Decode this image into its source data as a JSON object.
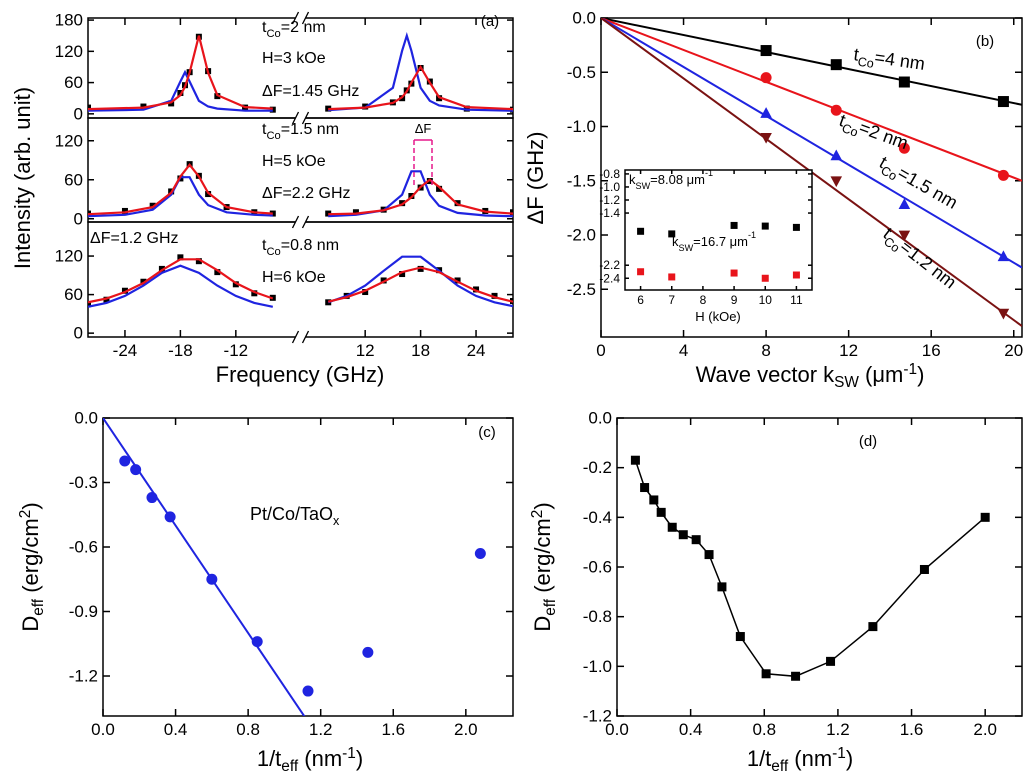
{
  "chart_data": [
    {
      "type": "spectra",
      "panel_label": "(a)",
      "ylabel": "Intensity (arb. unit)",
      "xlabel": "Frequency (GHz)",
      "xlim": [
        -28,
        28
      ],
      "xbreak": [
        -8,
        8
      ],
      "xticks": [
        -24,
        -18,
        -12,
        12,
        18,
        24
      ],
      "subplots": [
        {
          "ylim": [
            -8,
            184
          ],
          "yticks": [
            0,
            60,
            120,
            180
          ],
          "x": [
            -28,
            -22,
            -19,
            -18,
            -17.5,
            -17,
            -16,
            -15,
            -14,
            -11,
            -8,
            0,
            8,
            12,
            15,
            16,
            16.5,
            17,
            18,
            19,
            20,
            23,
            28
          ],
          "series": [
            {
              "color": "#000000",
              "marker": "square",
              "values": [
                12,
                14,
                20,
                40,
                55,
                80,
                148,
                82,
                34,
                12,
                8,
                null,
                10,
                14,
                22,
                30,
                45,
                58,
                88,
                62,
                30,
                10,
                8
              ]
            },
            {
              "color": "#e8141b",
              "values": [
                9,
                12,
                22,
                36,
                52,
                79,
                150,
                79,
                36,
                13,
                10,
                null,
                9,
                12,
                21,
                32,
                43,
                60,
                90,
                60,
                32,
                13,
                9
              ]
            },
            {
              "color": "#1f24e0",
              "values": [
                6,
                8,
                25,
                62,
                80,
                62,
                25,
                14,
                10,
                6,
                6,
                null,
                7,
                12,
                50,
                121,
                150,
                121,
                50,
                25,
                16,
                8,
                6
              ]
            }
          ],
          "annotations": [
            {
              "text": [
                "t",
                {
                  "t": "Co",
                  "s": "sub"
                },
                "=2 nm"
              ]
            },
            {
              "text": "H=3 kOe"
            },
            {
              "text": "ΔF=1.45 GHz"
            }
          ]
        },
        {
          "ylim": [
            -5,
            155
          ],
          "yticks": [
            0,
            60,
            120
          ],
          "x": [
            -28,
            -24,
            -21,
            -19,
            -18,
            -17,
            -16,
            -15,
            -13,
            -10,
            -8,
            0,
            8,
            11,
            14,
            16,
            17,
            18,
            19,
            20,
            22,
            25,
            28
          ],
          "series": [
            {
              "color": "#000000",
              "marker": "square",
              "values": [
                8,
                12,
                20,
                42,
                62,
                84,
                66,
                38,
                18,
                10,
                8,
                null,
                8,
                10,
                14,
                24,
                35,
                48,
                58,
                46,
                24,
                12,
                10
              ]
            },
            {
              "color": "#e8141b",
              "values": [
                7,
                10,
                18,
                40,
                65,
                83,
                65,
                40,
                18,
                10,
                8,
                null,
                7,
                8,
                13,
                22,
                33,
                49,
                60,
                49,
                22,
                11,
                8
              ]
            },
            {
              "color": "#1f24e0",
              "values": [
                4,
                6,
                14,
                37,
                64,
                64,
                37,
                21,
                10,
                6,
                5,
                null,
                4,
                6,
                13,
                37,
                73,
                73,
                37,
                20,
                9,
                5,
                4
              ]
            }
          ],
          "annotations": [
            {
              "text": [
                "t",
                {
                  "t": "Co",
                  "s": "sub"
                },
                "=1.5 nm"
              ]
            },
            {
              "text": "H=5 kOe"
            },
            {
              "text": "ΔF=2.2 GHz"
            },
            {
              "text": "ΔF",
              "color": "#e6198c"
            }
          ]
        },
        {
          "ylim": [
            -6,
            173
          ],
          "yticks": [
            0,
            60,
            120
          ],
          "x": [
            -28,
            -26,
            -24,
            -22,
            -20,
            -18,
            -16,
            -14,
            -12,
            -10,
            -8,
            0,
            8,
            10,
            12,
            14,
            16,
            18,
            20,
            22,
            24,
            26,
            28
          ],
          "series": [
            {
              "color": "#000000",
              "marker": "square",
              "values": [
                45,
                52,
                66,
                80,
                100,
                118,
                112,
                95,
                76,
                62,
                55,
                null,
                48,
                58,
                64,
                82,
                92,
                100,
                98,
                82,
                68,
                58,
                50
              ]
            },
            {
              "color": "#e8141b",
              "values": [
                48,
                54,
                64,
                78,
                98,
                115,
                115,
                98,
                78,
                64,
                54,
                null,
                49,
                56,
                66,
                80,
                95,
                102,
                95,
                80,
                66,
                56,
                49
              ]
            },
            {
              "color": "#1f24e0",
              "values": [
                41,
                47,
                58,
                74,
                94,
                105,
                94,
                74,
                58,
                47,
                41,
                null,
                48,
                58,
                74,
                97,
                119,
                119,
                97,
                74,
                58,
                48,
                42
              ]
            }
          ],
          "annotations": [
            {
              "text": "ΔF=1.2 GHz"
            },
            {
              "text": [
                "t",
                {
                  "t": "Co",
                  "s": "sub"
                },
                "=0.8 nm"
              ]
            },
            {
              "text": "H=6 kOe"
            }
          ]
        }
      ]
    },
    {
      "type": "scatter",
      "panel_label": "(b)",
      "ylabel": "ΔF (GHz)",
      "xlabel": [
        "Wave vector k",
        {
          "t": "SW",
          "s": "sub"
        },
        " (μm",
        {
          "t": "-1",
          "s": "sup"
        },
        ")"
      ],
      "xlim": [
        0,
        20.4
      ],
      "ylim": [
        -2.94,
        0
      ],
      "xticks": [
        0,
        4,
        8,
        12,
        16,
        20
      ],
      "yticks": [
        {
          "value": 0,
          "label": "0.0"
        },
        -0.5,
        {
          "value": -1,
          "label": "-1.0"
        },
        -1.5,
        {
          "value": -2,
          "label": "-2.0"
        },
        -2.5
      ],
      "x": [
        8.0,
        11.4,
        14.7,
        19.5
      ],
      "series": [
        {
          "color": "#000000",
          "marker": "square",
          "values": [
            -0.3,
            -0.43,
            -0.59,
            -0.77
          ],
          "fit_x": [
            0,
            20.4
          ],
          "fit_values": [
            0,
            -0.8
          ],
          "label": [
            "t",
            {
              "t": "Co",
              "s": "sub"
            },
            "=4 nm"
          ]
        },
        {
          "color": "#e8141b",
          "marker": "circle",
          "values": [
            -0.55,
            -0.85,
            -1.2,
            -1.45
          ],
          "fit_x": [
            0,
            20.4
          ],
          "fit_values": [
            0,
            -1.5
          ],
          "label": [
            "t",
            {
              "t": "Co",
              "s": "sub"
            },
            "=2 nm"
          ]
        },
        {
          "color": "#1f24e0",
          "marker": "triangle",
          "values": [
            -0.88,
            -1.27,
            -1.72,
            -2.2
          ],
          "fit_x": [
            0,
            20.4
          ],
          "fit_values": [
            0,
            -2.3
          ],
          "label": [
            "t",
            {
              "t": "Co",
              "s": "sub"
            },
            "=1.5 nm"
          ]
        },
        {
          "color": "#7a1212",
          "marker": "triangle-down",
          "values": [
            -1.1,
            -1.5,
            -2.0,
            -2.72
          ],
          "fit_x": [
            0,
            20.4
          ],
          "fit_values": [
            0,
            -2.84
          ],
          "label": [
            "t",
            {
              "t": "Co",
              "s": "sub"
            },
            "=1.2 nm"
          ]
        }
      ],
      "inset": {
        "type": "scatter",
        "xlabel": "H (kOe)",
        "xlim": [
          5.5,
          11.5
        ],
        "ylim": [
          -2.58,
          -0.74
        ],
        "xticks": [
          6,
          7,
          8,
          9,
          10,
          11
        ],
        "yticks": [
          -0.8,
          {
            "value": -1,
            "label": "-1.0"
          },
          -1.2,
          -1.4,
          -2.2,
          -2.4
        ],
        "x": [
          6,
          7,
          9,
          10,
          11
        ],
        "series": [
          {
            "color": "#000000",
            "marker": "square",
            "values": [
              -1.68,
              -1.72,
              -1.59,
              -1.6,
              -1.62
            ],
            "label": [
              "k",
              {
                "t": "SW",
                "s": "sub"
              },
              "=8.08 μm",
              {
                "t": "-1",
                "s": "sup"
              }
            ]
          },
          {
            "color": "#e8141b",
            "marker": "square",
            "values": [
              -2.3,
              -2.38,
              -2.32,
              -2.4,
              -2.35
            ],
            "label": [
              "k",
              {
                "t": "SW",
                "s": "sub"
              },
              "=16.7 μm",
              {
                "t": "-1",
                "s": "sup"
              }
            ]
          }
        ]
      }
    },
    {
      "type": "scatter",
      "panel_label": "(c)",
      "ylabel": [
        "D",
        {
          "t": "eff",
          "s": "sub"
        },
        " (erg/cm",
        {
          "t": "2",
          "s": "sup"
        },
        ")"
      ],
      "xlabel": [
        "1/t",
        {
          "t": "eff",
          "s": "sub"
        },
        " (nm",
        {
          "t": "-1",
          "s": "sup"
        },
        ")"
      ],
      "xlim": [
        0,
        2.26
      ],
      "ylim": [
        -1.386,
        0
      ],
      "xticks": [
        {
          "value": 0,
          "label": "0.0"
        },
        0.4,
        0.8,
        1.2,
        1.6,
        {
          "value": 2,
          "label": "2.0"
        }
      ],
      "yticks": [
        {
          "value": 0,
          "label": "0.0"
        },
        -0.3,
        -0.6,
        -0.9,
        -1.2
      ],
      "x": [
        0.12,
        0.18,
        0.27,
        0.37,
        0.6,
        0.85,
        1.13,
        1.46,
        2.08
      ],
      "series": [
        {
          "color": "#1f24e0",
          "marker": "circle",
          "values": [
            -0.2,
            -0.24,
            -0.37,
            -0.46,
            -0.75,
            -1.04,
            -1.27,
            -1.09,
            -0.63
          ],
          "fit_x": [
            0,
            1.12
          ],
          "fit_values": [
            0,
            -1.4
          ]
        }
      ],
      "annotations": [
        {
          "text": [
            "Pt/Co/TaO",
            {
              "t": "x",
              "s": "sub"
            }
          ]
        }
      ]
    },
    {
      "type": "line",
      "panel_label": "(d)",
      "ylabel": [
        "D",
        {
          "t": "eff",
          "s": "sub"
        },
        " (erg/cm",
        {
          "t": "2",
          "s": "sup"
        },
        ")"
      ],
      "xlabel": [
        "1/t",
        {
          "t": "eff",
          "s": "sub"
        },
        " (nm",
        {
          "t": "-1",
          "s": "sup"
        },
        ")"
      ],
      "xlim": [
        0,
        2.2
      ],
      "ylim": [
        -1.2,
        0
      ],
      "xticks": [
        {
          "value": 0,
          "label": "0.0"
        },
        0.4,
        0.8,
        1.2,
        1.6,
        {
          "value": 2,
          "label": "2.0"
        }
      ],
      "yticks": [
        {
          "value": 0,
          "label": "0.0"
        },
        -0.2,
        -0.4,
        -0.6,
        -0.8,
        {
          "value": -1,
          "label": "-1.0"
        },
        -1.2
      ],
      "x": [
        0.1,
        0.15,
        0.2,
        0.24,
        0.3,
        0.36,
        0.43,
        0.5,
        0.57,
        0.67,
        0.81,
        0.97,
        1.16,
        1.39,
        1.67,
        2.0
      ],
      "series": [
        {
          "color": "#000000",
          "marker": "square",
          "values": [
            -0.17,
            -0.28,
            -0.33,
            -0.38,
            -0.44,
            -0.47,
            -0.49,
            -0.55,
            -0.68,
            -0.88,
            -1.03,
            -1.04,
            -0.98,
            -0.84,
            -0.61,
            -0.4
          ]
        }
      ]
    }
  ]
}
